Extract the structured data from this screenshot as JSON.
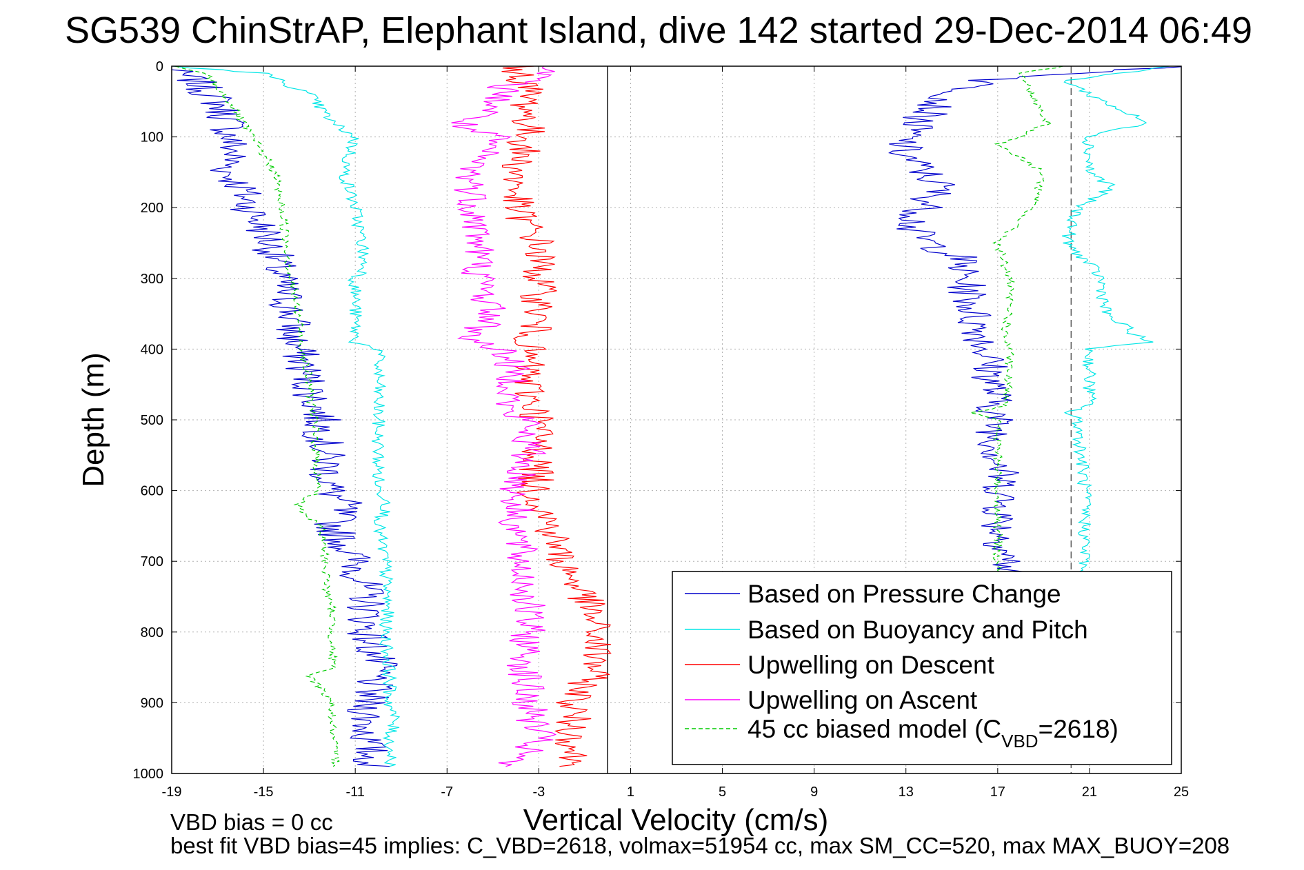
{
  "chart_data": {
    "type": "line",
    "title": "SG539 ChinStrAP, Elephant Island, dive 142 started 29-Dec-2014 06:49",
    "xlabel": "Vertical Velocity (cm/s)",
    "ylabel": "Depth (m)",
    "xlim": [
      -19,
      25
    ],
    "ylim": [
      0,
      1000
    ],
    "y_reversed": true,
    "grid": "dotted",
    "xticks": [
      -19,
      -15,
      -11,
      -7,
      -3,
      1,
      5,
      9,
      13,
      17,
      21,
      25
    ],
    "yticks": [
      0,
      100,
      200,
      300,
      400,
      500,
      600,
      700,
      800,
      900,
      1000
    ],
    "reference_lines": [
      {
        "x": 0,
        "style": "solid",
        "color": "#000000"
      },
      {
        "x": 20.2,
        "style": "dashed",
        "color": "#555555"
      }
    ],
    "legend": {
      "placement": "bottom-right",
      "entries": [
        {
          "label": "Based on Pressure Change",
          "color": "#0000cc"
        },
        {
          "label": "Based on Buoyancy and Pitch",
          "color": "#00e6e6"
        },
        {
          "label": "Upwelling on Descent",
          "color": "#ff0000"
        },
        {
          "label": "Upwelling on Ascent",
          "color": "#ff00ff"
        },
        {
          "label": "45 cc biased model (C",
          "sub": "VBD",
          "suffix": "=2618)",
          "color": "#00cc00",
          "dashed": true
        }
      ]
    },
    "series": [
      {
        "name": "Based on Pressure Change",
        "color": "#0000cc",
        "noise": 0.9,
        "profiles": [
          {
            "depth": [
              0,
              20,
              50,
              80,
              100,
              120,
              150,
              170,
              200,
              230,
              260,
              300,
              330,
              360,
              380,
              400,
              450,
              500,
              550,
              600,
              620,
              650,
              700,
              750,
              800,
              850,
              900,
              950,
              990
            ],
            "v": [
              -19.5,
              -18,
              -17,
              -16.5,
              -16.5,
              -16.3,
              -16.6,
              -16,
              -15.6,
              -15,
              -14.6,
              -14.3,
              -14,
              -13.7,
              -13.8,
              -13.5,
              -13,
              -12.5,
              -12.3,
              -12.1,
              -11.5,
              -12,
              -11,
              -10.5,
              -10.5,
              -10,
              -10.5,
              -10.5,
              -10.3
            ]
          },
          {
            "depth": [
              0,
              20,
              50,
              80,
              100,
              120,
              150,
              170,
              200,
              230,
              250,
              270,
              300,
              330,
              360,
              380,
              400,
              450,
              500,
              550,
              600,
              650,
              700,
              730
            ],
            "v": [
              25,
              16.5,
              14.5,
              13.5,
              13,
              12.8,
              13.8,
              14.5,
              13.8,
              13.2,
              14,
              15.3,
              15.5,
              15.8,
              16,
              16.3,
              16.5,
              16.8,
              16.9,
              17,
              17.2,
              17.1,
              17.4,
              17.5
            ]
          }
        ]
      },
      {
        "name": "Based on Buoyancy and Pitch",
        "color": "#00e6e6",
        "noise": 0.3,
        "profiles": [
          {
            "depth": [
              0,
              10,
              40,
              80,
              100,
              150,
              200,
              250,
              290,
              300,
              350,
              390,
              400,
              500,
              600,
              615,
              650,
              700,
              770,
              800,
              860,
              900,
              925,
              950,
              990
            ],
            "v": [
              -19,
              -15,
              -13,
              -12,
              -11,
              -11.5,
              -11,
              -10.7,
              -10.6,
              -11,
              -11,
              -11,
              -10,
              -10,
              -10,
              -9.5,
              -10,
              -9.7,
              -9.6,
              -9.7,
              -9.5,
              -9.5,
              -9.3,
              -9.5,
              -9.4
            ]
          },
          {
            "depth": [
              0,
              20,
              40,
              80,
              100,
              150,
              170,
              200,
              250,
              280,
              300,
              350,
              390,
              400,
              480,
              490,
              500,
              600,
              700,
              720
            ],
            "v": [
              24.5,
              20,
              21,
              23.5,
              21,
              21,
              22,
              20.5,
              20,
              21,
              21.5,
              21.7,
              23.5,
              21,
              21,
              20,
              20.5,
              20.8,
              20.8,
              20.5
            ]
          }
        ]
      },
      {
        "name": "Upwelling on Descent",
        "color": "#ff0000",
        "noise": 0.8,
        "profiles": [
          {
            "depth": [
              0,
              30,
              60,
              100,
              150,
              200,
              250,
              300,
              350,
              400,
              450,
              500,
              550,
              600,
              650,
              700,
              750,
              800,
              850,
              900,
              950,
              990
            ],
            "v": [
              -4,
              -3.5,
              -3.5,
              -3.5,
              -4,
              -4,
              -3,
              -3,
              -3,
              -3.5,
              -3.5,
              -3,
              -3,
              -3.2,
              -2.5,
              -2,
              -1,
              -0.5,
              -0.5,
              -1.5,
              -1.5,
              -1.5
            ]
          }
        ]
      },
      {
        "name": "Upwelling on Ascent",
        "color": "#ff00ff",
        "noise": 0.8,
        "profiles": [
          {
            "depth": [
              0,
              30,
              60,
              85,
              100,
              150,
              200,
              250,
              300,
              350,
              390,
              400,
              450,
              490,
              500,
              550,
              600,
              650,
              700,
              750,
              800,
              850,
              900,
              950,
              980,
              990
            ],
            "v": [
              -2,
              -4.5,
              -5,
              -6.5,
              -5,
              -6,
              -5.8,
              -5.6,
              -5.6,
              -5,
              -6,
              -4.5,
              -4,
              -4.5,
              -3.5,
              -3.5,
              -4,
              -4,
              -3.8,
              -3.5,
              -3.5,
              -3.6,
              -3.5,
              -3,
              -4,
              -5
            ]
          }
        ]
      },
      {
        "name": "45 cc biased model",
        "color": "#00cc00",
        "dashed": true,
        "noise": 0.2,
        "profiles": [
          {
            "depth": [
              0,
              10,
              50,
              100,
              150,
              200,
              250,
              300,
              350,
              400,
              450,
              500,
              550,
              600,
              620,
              640,
              650,
              700,
              750,
              770,
              800,
              850,
              860,
              900,
              950,
              990
            ],
            "v": [
              -19,
              -17.5,
              -16.5,
              -15.5,
              -14.5,
              -14.2,
              -14,
              -13.8,
              -13.5,
              -13.3,
              -13,
              -12.8,
              -12.7,
              -12.6,
              -13.5,
              -13,
              -12.5,
              -12.3,
              -12.2,
              -12,
              -12,
              -12,
              -13,
              -12,
              -12,
              -11.8
            ]
          },
          {
            "depth": [
              0,
              10,
              40,
              80,
              100,
              110,
              150,
              200,
              250,
              300,
              350,
              380,
              400,
              480,
              490,
              500,
              600,
              700,
              720
            ],
            "v": [
              20,
              18,
              18.5,
              19.2,
              18,
              17,
              19,
              18.5,
              17,
              17.5,
              17.5,
              17.3,
              17.5,
              17.4,
              16,
              17,
              17,
              17,
              17
            ]
          }
        ]
      }
    ],
    "footer_lines": [
      "VBD bias = 0 cc",
      "best fit VBD bias=45 implies: C_VBD=2618, volmax=51954 cc, max SM_CC=520, max MAX_BUOY=208"
    ]
  }
}
